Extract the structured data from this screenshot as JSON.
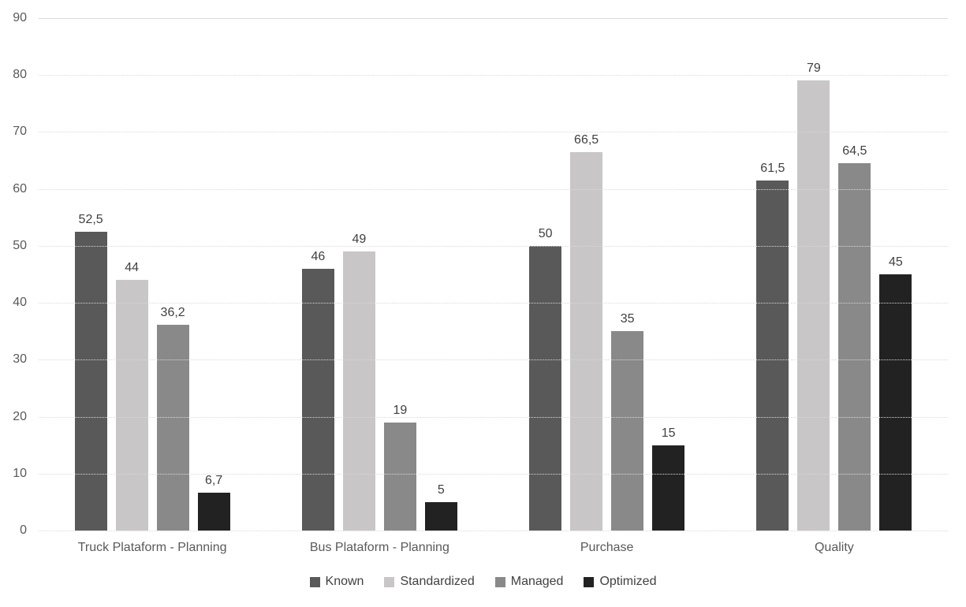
{
  "chart_data": {
    "type": "bar",
    "title": "",
    "xlabel": "",
    "ylabel": "",
    "categories": [
      "Truck Plataform - Planning",
      "Bus Plataform - Planning",
      "Purchase",
      "Quality"
    ],
    "series": [
      {
        "name": "Known",
        "color": "#595959",
        "values": [
          52.5,
          46,
          50,
          61.5
        ],
        "labels": [
          "52,5",
          "46",
          "50",
          "61,5"
        ]
      },
      {
        "name": "Standardized",
        "color": "#c8c6c6",
        "values": [
          44,
          49,
          66.5,
          79
        ],
        "labels": [
          "44",
          "49",
          "66,5",
          "79"
        ]
      },
      {
        "name": "Managed",
        "color": "#898989",
        "values": [
          36.2,
          19,
          35,
          64.5
        ],
        "labels": [
          "36,2",
          "19",
          "35",
          "64,5"
        ]
      },
      {
        "name": "Optimized",
        "color": "#222222",
        "values": [
          6.7,
          5,
          15,
          45
        ],
        "labels": [
          "6,7",
          "5",
          "15",
          "45"
        ]
      }
    ],
    "ylim": [
      0,
      90
    ],
    "yticks": [
      "0",
      "10",
      "20",
      "30",
      "40",
      "50",
      "60",
      "70",
      "80",
      "90"
    ],
    "grid": true,
    "gridline_color": "#d9d9d9",
    "legend_position": "bottom",
    "data_label_color": "#404040",
    "axis_text_color": "#595959",
    "background": "#ffffff"
  }
}
